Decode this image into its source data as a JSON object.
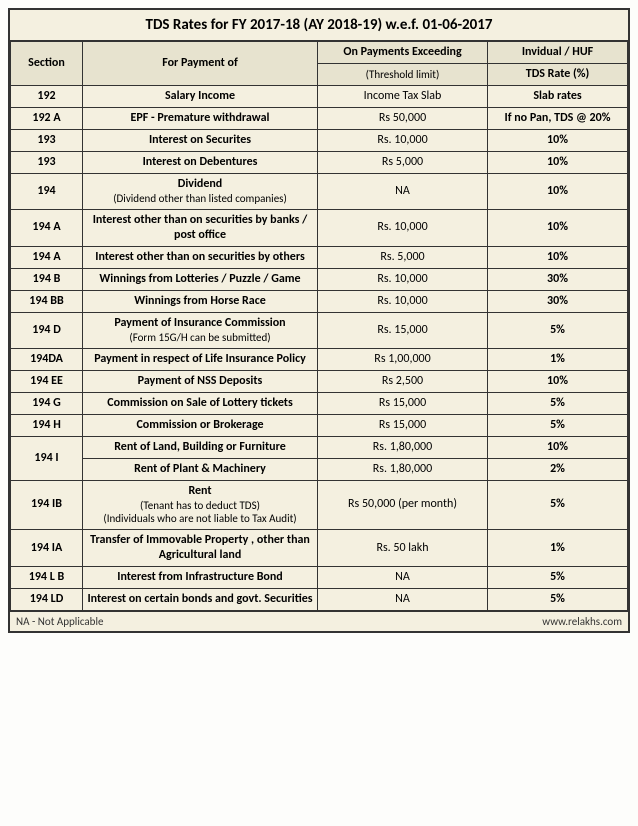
{
  "title": "TDS Rates for FY 2017-18 (AY 2018-19) w.e.f. 01-06-2017",
  "head": {
    "section": "Section",
    "payment": "For Payment of",
    "threshold_main": "On Payments Exceeding",
    "threshold_sub": "(Threshold limit)",
    "rate_main": "Invidual / HUF",
    "rate_sub": "TDS Rate (%)"
  },
  "rows": [
    {
      "sec": "192",
      "pay": "Salary Income",
      "thr": "Income Tax Slab",
      "rate": "Slab rates"
    },
    {
      "sec": "192 A",
      "pay": "EPF - Premature withdrawal",
      "thr": "Rs 50,000",
      "rate": "If no Pan, TDS @ 20%"
    },
    {
      "sec": "193",
      "pay": "Interest on Securites",
      "thr": "Rs. 10,000",
      "rate": "10%"
    },
    {
      "sec": "193",
      "pay": "Interest on Debentures",
      "thr": "Rs 5,000",
      "rate": "10%"
    },
    {
      "sec": "194",
      "pay": "Dividend",
      "sub": "(Dividend other than listed companies)",
      "thr": "NA",
      "rate": "10%"
    },
    {
      "sec": "194 A",
      "pay": "Interest other than on securities by banks / post office",
      "thr": "Rs. 10,000",
      "rate": "10%"
    },
    {
      "sec": "194 A",
      "pay": "Interest other than on securities by others",
      "thr": "Rs. 5,000",
      "rate": "10%"
    },
    {
      "sec": "194 B",
      "pay": "Winnings from Lotteries / Puzzle / Game",
      "thr": "Rs. 10,000",
      "rate": "30%"
    },
    {
      "sec": "194 BB",
      "pay": "Winnings from Horse Race",
      "thr": "Rs. 10,000",
      "rate": "30%"
    },
    {
      "sec": "194 D",
      "pay": "Payment of Insurance Commission",
      "sub": "(Form 15G/H can be submitted)",
      "thr": "Rs. 15,000",
      "rate": "5%"
    },
    {
      "sec": "194DA",
      "pay": "Payment in respect of Life Insurance Policy",
      "thr": "Rs 1,00,000",
      "rate": "1%"
    },
    {
      "sec": "194 EE",
      "pay": "Payment of NSS Deposits",
      "thr": "Rs 2,500",
      "rate": "10%"
    },
    {
      "sec": "194 G",
      "pay": "Commission on Sale of Lottery tickets",
      "thr": "Rs 15,000",
      "rate": "5%"
    },
    {
      "sec": "194 H",
      "pay": "Commission or Brokerage",
      "thr": "Rs 15,000",
      "rate": "5%"
    },
    {
      "sec": "194 I",
      "span": 2,
      "pay": "Rent of Land, Building or Furniture",
      "thr": "Rs. 1,80,000",
      "rate": "10%"
    },
    {
      "skipSec": true,
      "pay": "Rent of Plant & Machinery",
      "thr": "Rs. 1,80,000",
      "rate": "2%"
    },
    {
      "sec": "194 IB",
      "pay": "Rent",
      "sub": "(Tenant has to deduct TDS)",
      "sub2": "(Individuals who are not liable to Tax Audit)",
      "thr": "Rs 50,000 (per month)",
      "rate": "5%"
    },
    {
      "sec": "194 IA",
      "pay": "Transfer of Immovable Property , other than Agricultural land",
      "thr": "Rs. 50 lakh",
      "rate": "1%"
    },
    {
      "sec": "194 L B",
      "pay": "Interest from Infrastructure Bond",
      "thr": "NA",
      "rate": "5%"
    },
    {
      "sec": "194 LD",
      "pay": "Interest on certain bonds and govt. Securities",
      "thr": "NA",
      "rate": "5%"
    }
  ],
  "footer_left": "NA - Not Applicable",
  "footer_right": "www.relakhs.com"
}
